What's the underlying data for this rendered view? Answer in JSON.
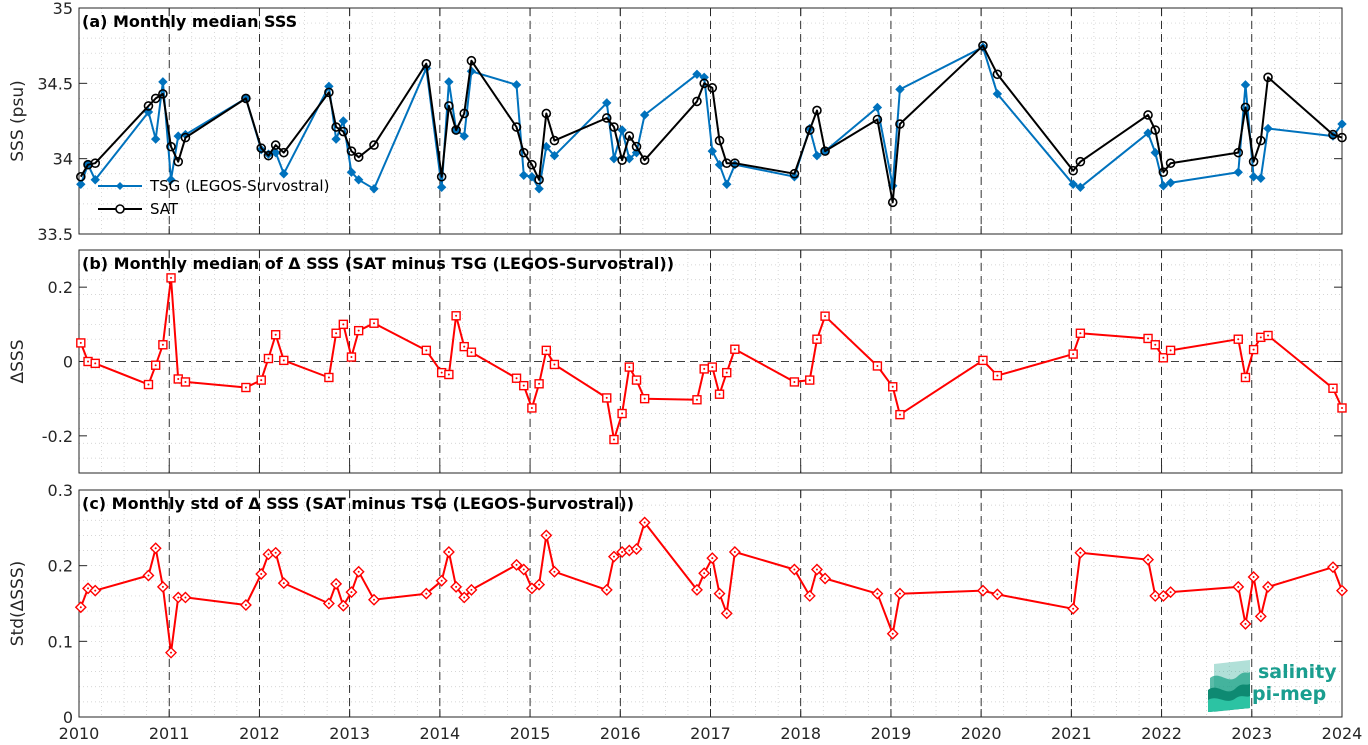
{
  "chart_data": [
    {
      "type": "line",
      "title": "(a) Monthly median SSS",
      "ylabel": "SSS (psu)",
      "xlim": [
        2010,
        2024
      ],
      "ylim": [
        33.5,
        35
      ],
      "yticks": [
        33.5,
        34,
        34.5,
        35
      ],
      "yticklabels": [
        "33.5",
        "34",
        "34.5",
        "35"
      ],
      "legend": "left",
      "series": [
        {
          "name": "TSG (LEGOS-Survostral)",
          "color": "#0072bd",
          "marker": "diamond-filled",
          "x": [
            2010.02,
            2010.1,
            2010.18,
            2010.77,
            2010.85,
            2010.93,
            2011.02,
            2011.1,
            2011.18,
            2011.85,
            2012.02,
            2012.1,
            2012.18,
            2012.27,
            2012.77,
            2012.85,
            2012.93,
            2013.02,
            2013.1,
            2013.27,
            2013.85,
            2014.02,
            2014.1,
            2014.18,
            2014.27,
            2014.35,
            2014.85,
            2014.93,
            2015.02,
            2015.1,
            2015.18,
            2015.27,
            2015.85,
            2015.93,
            2016.02,
            2016.1,
            2016.18,
            2016.27,
            2016.85,
            2016.93,
            2017.02,
            2017.1,
            2017.18,
            2017.27,
            2017.93,
            2018.1,
            2018.18,
            2018.27,
            2018.85,
            2019.02,
            2019.1,
            2020.02,
            2020.18,
            2021.02,
            2021.1,
            2021.85,
            2021.93,
            2022.02,
            2022.1,
            2022.85,
            2022.93,
            2023.02,
            2023.1,
            2023.18,
            2023.9,
            2024.0
          ],
          "values": [
            33.83,
            33.96,
            33.86,
            34.31,
            34.13,
            34.51,
            33.86,
            34.15,
            34.16,
            34.4,
            34.06,
            34.03,
            34.04,
            33.9,
            34.48,
            34.13,
            34.25,
            33.91,
            33.86,
            33.8,
            34.6,
            33.81,
            34.51,
            34.19,
            34.15,
            34.58,
            34.49,
            33.89,
            33.88,
            33.8,
            34.08,
            34.02,
            34.37,
            34.0,
            34.19,
            34.0,
            34.04,
            34.29,
            34.56,
            34.54,
            34.05,
            33.96,
            33.83,
            33.96,
            33.88,
            34.2,
            34.02,
            34.05,
            34.34,
            33.82,
            34.46,
            34.74,
            34.43,
            33.83,
            33.81,
            34.17,
            34.04,
            33.82,
            33.84,
            33.91,
            34.49,
            33.88,
            33.87,
            34.2,
            34.15,
            34.23
          ]
        },
        {
          "name": "SAT",
          "color": "#000000",
          "marker": "circle-open",
          "x": [
            2010.02,
            2010.1,
            2010.18,
            2010.77,
            2010.85,
            2010.93,
            2011.02,
            2011.1,
            2011.18,
            2011.85,
            2012.02,
            2012.1,
            2012.18,
            2012.27,
            2012.77,
            2012.85,
            2012.93,
            2013.02,
            2013.1,
            2013.27,
            2013.85,
            2014.02,
            2014.1,
            2014.18,
            2014.27,
            2014.35,
            2014.85,
            2014.93,
            2015.02,
            2015.1,
            2015.18,
            2015.27,
            2015.85,
            2015.93,
            2016.02,
            2016.1,
            2016.18,
            2016.27,
            2016.85,
            2016.93,
            2017.02,
            2017.1,
            2017.18,
            2017.27,
            2017.93,
            2018.1,
            2018.18,
            2018.27,
            2018.85,
            2019.02,
            2019.1,
            2020.02,
            2020.18,
            2021.02,
            2021.1,
            2021.85,
            2021.93,
            2022.02,
            2022.1,
            2022.85,
            2022.93,
            2023.02,
            2023.1,
            2023.18,
            2023.9,
            2024.0
          ],
          "values": [
            33.88,
            33.96,
            33.97,
            34.35,
            34.4,
            34.43,
            34.08,
            33.98,
            34.14,
            34.4,
            34.07,
            34.02,
            34.09,
            34.04,
            34.44,
            34.21,
            34.18,
            34.05,
            34.01,
            34.09,
            34.63,
            33.88,
            34.35,
            34.19,
            34.3,
            34.65,
            34.21,
            34.04,
            33.96,
            33.86,
            34.3,
            34.12,
            34.27,
            34.21,
            33.99,
            34.15,
            34.08,
            33.99,
            34.38,
            34.5,
            34.47,
            34.12,
            33.97,
            33.97,
            33.9,
            34.19,
            34.32,
            34.05,
            34.26,
            33.71,
            34.23,
            34.75,
            34.56,
            33.92,
            33.98,
            34.29,
            34.19,
            33.91,
            33.97,
            34.04,
            34.34,
            33.98,
            34.12,
            34.54,
            34.16,
            34.14
          ]
        }
      ]
    },
    {
      "type": "line",
      "title": "(b) Monthly median of Δ SSS (SAT minus TSG (LEGOS-Survostral))",
      "ylabel": "ΔSSS",
      "xlim": [
        2010,
        2024
      ],
      "ylim": [
        -0.3,
        0.3
      ],
      "yticks": [
        -0.2,
        0,
        0.2
      ],
      "yticklabels": [
        "-0.2",
        "0",
        "0.2"
      ],
      "series": [
        {
          "name": "",
          "color": "#ff0000",
          "marker": "square-dot",
          "x": [
            2010.02,
            2010.1,
            2010.18,
            2010.77,
            2010.85,
            2010.93,
            2011.02,
            2011.1,
            2011.18,
            2011.85,
            2012.02,
            2012.1,
            2012.18,
            2012.27,
            2012.77,
            2012.85,
            2012.93,
            2013.02,
            2013.1,
            2013.27,
            2013.85,
            2014.02,
            2014.1,
            2014.18,
            2014.27,
            2014.35,
            2014.85,
            2014.93,
            2015.02,
            2015.1,
            2015.18,
            2015.27,
            2015.85,
            2015.93,
            2016.02,
            2016.1,
            2016.18,
            2016.27,
            2016.85,
            2016.93,
            2017.02,
            2017.1,
            2017.18,
            2017.27,
            2017.93,
            2018.1,
            2018.18,
            2018.27,
            2018.85,
            2019.02,
            2019.1,
            2020.02,
            2020.18,
            2021.02,
            2021.1,
            2021.85,
            2021.93,
            2022.02,
            2022.1,
            2022.85,
            2022.93,
            2023.02,
            2023.1,
            2023.18,
            2023.9,
            2024.0
          ],
          "values": [
            0.05,
            0.0,
            -0.005,
            -0.062,
            -0.01,
            0.045,
            0.225,
            -0.047,
            -0.055,
            -0.07,
            -0.05,
            0.008,
            0.072,
            0.003,
            -0.043,
            0.076,
            0.1,
            0.012,
            0.083,
            0.103,
            0.03,
            -0.03,
            -0.035,
            0.123,
            0.04,
            0.025,
            -0.045,
            -0.065,
            -0.125,
            -0.06,
            0.03,
            -0.008,
            -0.098,
            -0.21,
            -0.14,
            -0.015,
            -0.05,
            -0.1,
            -0.103,
            -0.02,
            -0.015,
            -0.088,
            -0.03,
            0.033,
            -0.055,
            -0.05,
            0.06,
            0.122,
            -0.012,
            -0.068,
            -0.143,
            0.003,
            -0.038,
            0.02,
            0.076,
            0.062,
            0.045,
            0.01,
            0.03,
            0.06,
            -0.043,
            0.032,
            0.065,
            0.07,
            -0.072,
            -0.125
          ]
        }
      ]
    },
    {
      "type": "line",
      "title": "(c) Monthly std of Δ SSS (SAT minus TSG (LEGOS-Survostral))",
      "ylabel": "Std(ΔSSS)",
      "xlim": [
        2010,
        2024
      ],
      "ylim": [
        0,
        0.3
      ],
      "yticks": [
        0,
        0.1,
        0.2,
        0.3
      ],
      "yticklabels": [
        "0",
        "0.1",
        "0.2",
        "0.3"
      ],
      "xticks": [
        2010,
        2011,
        2012,
        2013,
        2014,
        2015,
        2016,
        2017,
        2018,
        2019,
        2020,
        2021,
        2022,
        2023,
        2024
      ],
      "xticklabels": [
        "2010",
        "2011",
        "2012",
        "2013",
        "2014",
        "2015",
        "2016",
        "2017",
        "2018",
        "2019",
        "2020",
        "2021",
        "2022",
        "2023",
        "2024"
      ],
      "series": [
        {
          "name": "",
          "color": "#ff0000",
          "marker": "diamond-dot",
          "x": [
            2010.02,
            2010.1,
            2010.18,
            2010.77,
            2010.85,
            2010.93,
            2011.02,
            2011.1,
            2011.18,
            2011.85,
            2012.02,
            2012.1,
            2012.18,
            2012.27,
            2012.77,
            2012.85,
            2012.93,
            2013.02,
            2013.1,
            2013.27,
            2013.85,
            2014.02,
            2014.1,
            2014.18,
            2014.27,
            2014.35,
            2014.85,
            2014.93,
            2015.02,
            2015.1,
            2015.18,
            2015.27,
            2015.85,
            2015.93,
            2016.02,
            2016.1,
            2016.18,
            2016.27,
            2016.85,
            2016.93,
            2017.02,
            2017.1,
            2017.18,
            2017.27,
            2017.93,
            2018.1,
            2018.18,
            2018.27,
            2018.85,
            2019.02,
            2019.1,
            2020.02,
            2020.18,
            2021.02,
            2021.1,
            2021.85,
            2021.93,
            2022.02,
            2022.1,
            2022.85,
            2022.93,
            2023.02,
            2023.1,
            2023.18,
            2023.9,
            2024.0
          ],
          "values": [
            0.145,
            0.17,
            0.167,
            0.187,
            0.223,
            0.172,
            0.085,
            0.158,
            0.158,
            0.148,
            0.189,
            0.215,
            0.217,
            0.177,
            0.15,
            0.176,
            0.147,
            0.165,
            0.192,
            0.155,
            0.163,
            0.18,
            0.218,
            0.172,
            0.158,
            0.168,
            0.201,
            0.195,
            0.17,
            0.175,
            0.24,
            0.192,
            0.168,
            0.212,
            0.218,
            0.22,
            0.222,
            0.257,
            0.168,
            0.19,
            0.21,
            0.163,
            0.137,
            0.218,
            0.195,
            0.16,
            0.195,
            0.183,
            0.163,
            0.11,
            0.163,
            0.167,
            0.162,
            0.143,
            0.217,
            0.208,
            0.16,
            0.16,
            0.165,
            0.172,
            0.123,
            0.185,
            0.133,
            0.172,
            0.198,
            0.167
          ]
        }
      ]
    }
  ],
  "logo": {
    "line1": "salinity",
    "line2": "pi-mep",
    "icon": "salinity-waves-icon"
  }
}
